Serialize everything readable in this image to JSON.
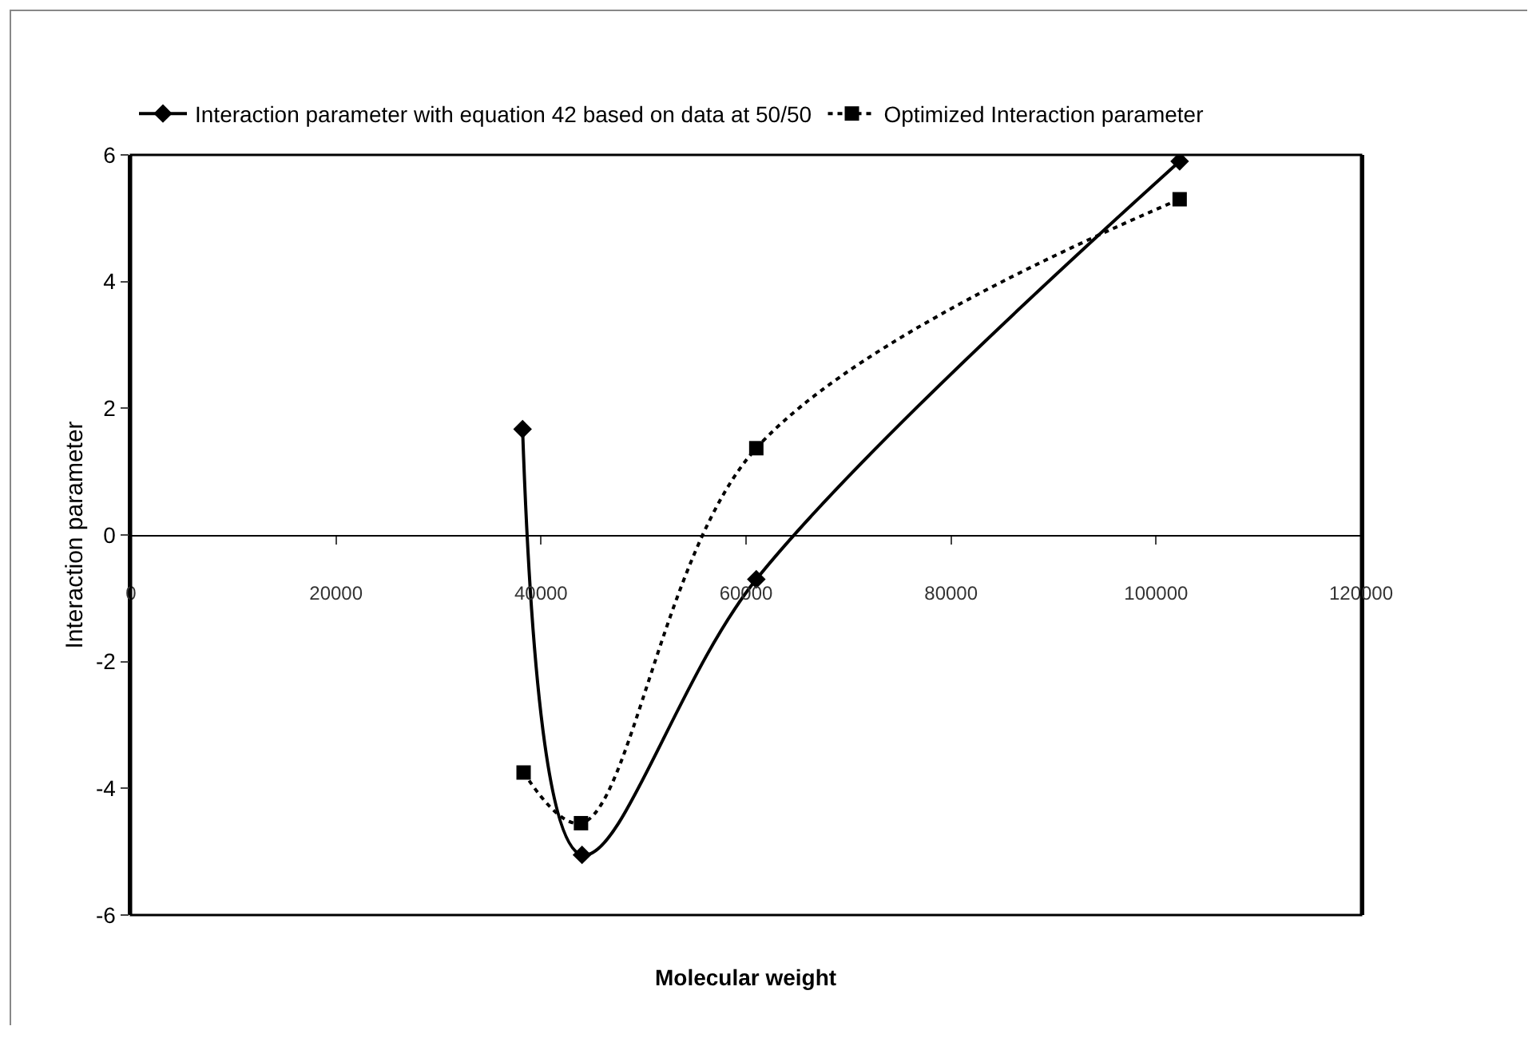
{
  "chart_data": {
    "type": "line",
    "xlabel": "Molecular weight",
    "ylabel": "Interaction parameter",
    "xlim": [
      0,
      120000
    ],
    "xticks": [
      0,
      20000,
      40000,
      60000,
      80000,
      100000,
      120000
    ],
    "ylim": [
      -6,
      6
    ],
    "yticks": [
      -6,
      -4,
      -2,
      0,
      2,
      4,
      6
    ],
    "legend": "top",
    "grid": false,
    "series": [
      {
        "name": "Interaction parameter with equation 42 based on data at 50/50",
        "color": "#000000",
        "marker": "diamond",
        "line_style": "solid",
        "x": [
          38200,
          44000,
          61000,
          102300
        ],
        "values": [
          1.67,
          -5.05,
          -0.7,
          5.9
        ]
      },
      {
        "name": "Optimized Interaction parameter",
        "color": "#000000",
        "marker": "square",
        "line_style": "dotted",
        "x": [
          38300,
          43900,
          61000,
          102300
        ],
        "values": [
          -3.75,
          -4.55,
          1.37,
          5.3
        ]
      }
    ]
  }
}
